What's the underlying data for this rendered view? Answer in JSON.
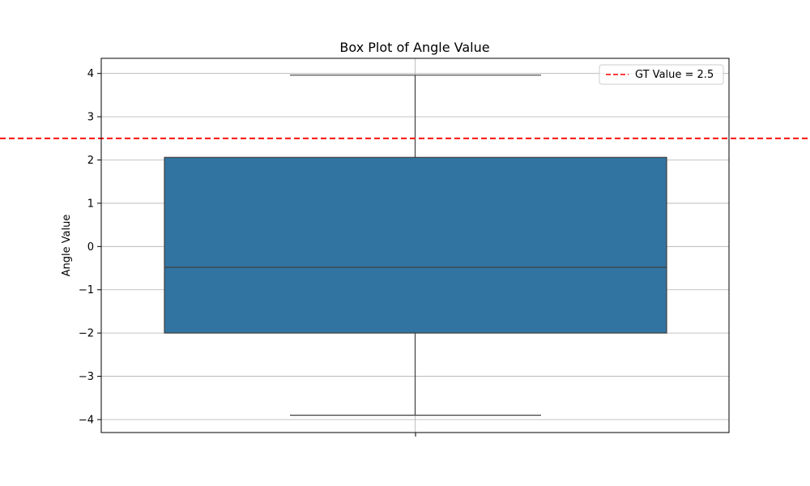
{
  "chart_data": {
    "type": "box",
    "title": "Box Plot of Angle Value",
    "xlabel": "",
    "ylabel": "Angle Value",
    "ylim": [
      -4.3,
      4.35
    ],
    "yticks": [
      4,
      3,
      2,
      1,
      0,
      -1,
      -2,
      -3,
      -4
    ],
    "ytick_labels": [
      "4",
      "3",
      "2",
      "1",
      "0",
      "−1",
      "−2",
      "−3",
      "−4"
    ],
    "grid": true,
    "legend_position": "top-right",
    "box": {
      "whisker_low": -3.9,
      "q1": -2.0,
      "median": -0.48,
      "q3": 2.06,
      "whisker_high": 3.96,
      "color": "#3274a1",
      "edge_color": "#3f3f3f"
    },
    "reference_line": {
      "value": 2.5,
      "label": "GT Value = 2.5",
      "color": "#ff0000",
      "style": "dashed"
    }
  }
}
